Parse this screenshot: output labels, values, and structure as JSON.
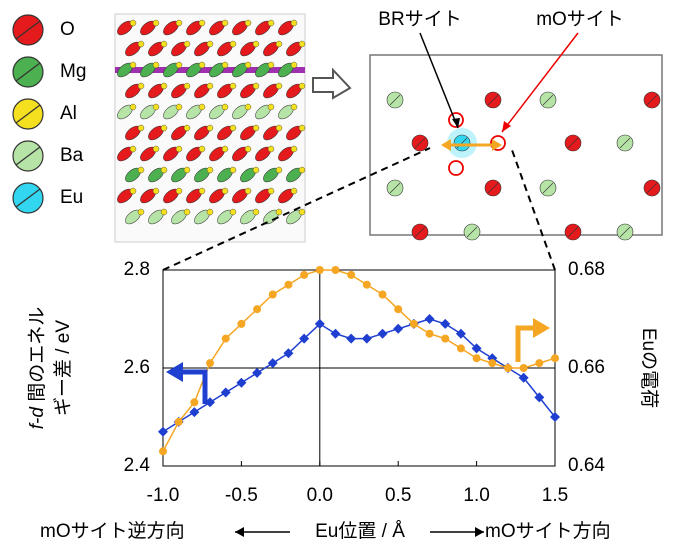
{
  "legend_atoms": [
    {
      "name": "O",
      "color": "#e41a1c"
    },
    {
      "name": "Mg",
      "color": "#4caf50"
    },
    {
      "name": "Al",
      "color": "#f5e020"
    },
    {
      "name": "Ba",
      "color": "#b6e3a6"
    },
    {
      "name": "Eu",
      "color": "#33d6f0"
    }
  ],
  "site_labels": {
    "br": "BRサイト",
    "mo": "mOサイト"
  },
  "chart_data": {
    "type": "line",
    "ylabel": [
      "f-d 間のエネル",
      "ギー差 / eV"
    ],
    "y2label": "Euの電荷",
    "xlabel": "Eu位置 / Å",
    "xlabel_left": "mOサイト逆方向",
    "xlabel_right": "mOサイト方向",
    "x": [
      -1.0,
      -0.9,
      -0.8,
      -0.7,
      -0.6,
      -0.5,
      -0.4,
      -0.3,
      -0.2,
      -0.1,
      0.0,
      0.1,
      0.2,
      0.3,
      0.4,
      0.5,
      0.6,
      0.7,
      0.8,
      0.9,
      1.0,
      1.1,
      1.2,
      1.3,
      1.4,
      1.5
    ],
    "series": [
      {
        "color": "#1f3fd0",
        "marker": "diamond",
        "values": [
          2.47,
          2.49,
          2.51,
          2.53,
          2.55,
          2.57,
          2.59,
          2.61,
          2.63,
          2.66,
          2.69,
          2.67,
          2.66,
          2.66,
          2.67,
          2.68,
          2.69,
          2.7,
          2.69,
          2.67,
          2.64,
          2.62,
          2.6,
          2.58,
          2.54,
          2.5
        ]
      },
      {
        "color": "#f5a623",
        "marker": "circle",
        "axis": "y2",
        "values": [
          0.643,
          0.649,
          0.653,
          0.661,
          0.666,
          0.669,
          0.672,
          0.675,
          0.677,
          0.679,
          0.68,
          0.68,
          0.679,
          0.677,
          0.675,
          0.672,
          0.669,
          0.667,
          0.666,
          0.664,
          0.662,
          0.661,
          0.66,
          0.66,
          0.661,
          0.662
        ]
      }
    ],
    "xlim": [
      -1.0,
      1.5
    ],
    "xticks": [
      {
        "value": -1.0,
        "label": "-1.0"
      },
      {
        "value": -0.5,
        "label": "-0.5"
      },
      {
        "value": 0.0,
        "label": "0.0"
      },
      {
        "value": 0.5,
        "label": "0.5"
      },
      {
        "value": 1.0,
        "label": "1.0"
      },
      {
        "value": 1.5,
        "label": "1.5"
      }
    ],
    "ylim": [
      2.4,
      2.8
    ],
    "yticks": [
      {
        "value": 2.4,
        "label": "2.4"
      },
      {
        "value": 2.6,
        "label": "2.6"
      },
      {
        "value": 2.8,
        "label": "2.8"
      }
    ],
    "y2lim": [
      0.64,
      0.68
    ],
    "y2ticks": [
      0.64,
      0.66,
      0.68
    ],
    "xref": 0.0,
    "yref": 2.6
  }
}
